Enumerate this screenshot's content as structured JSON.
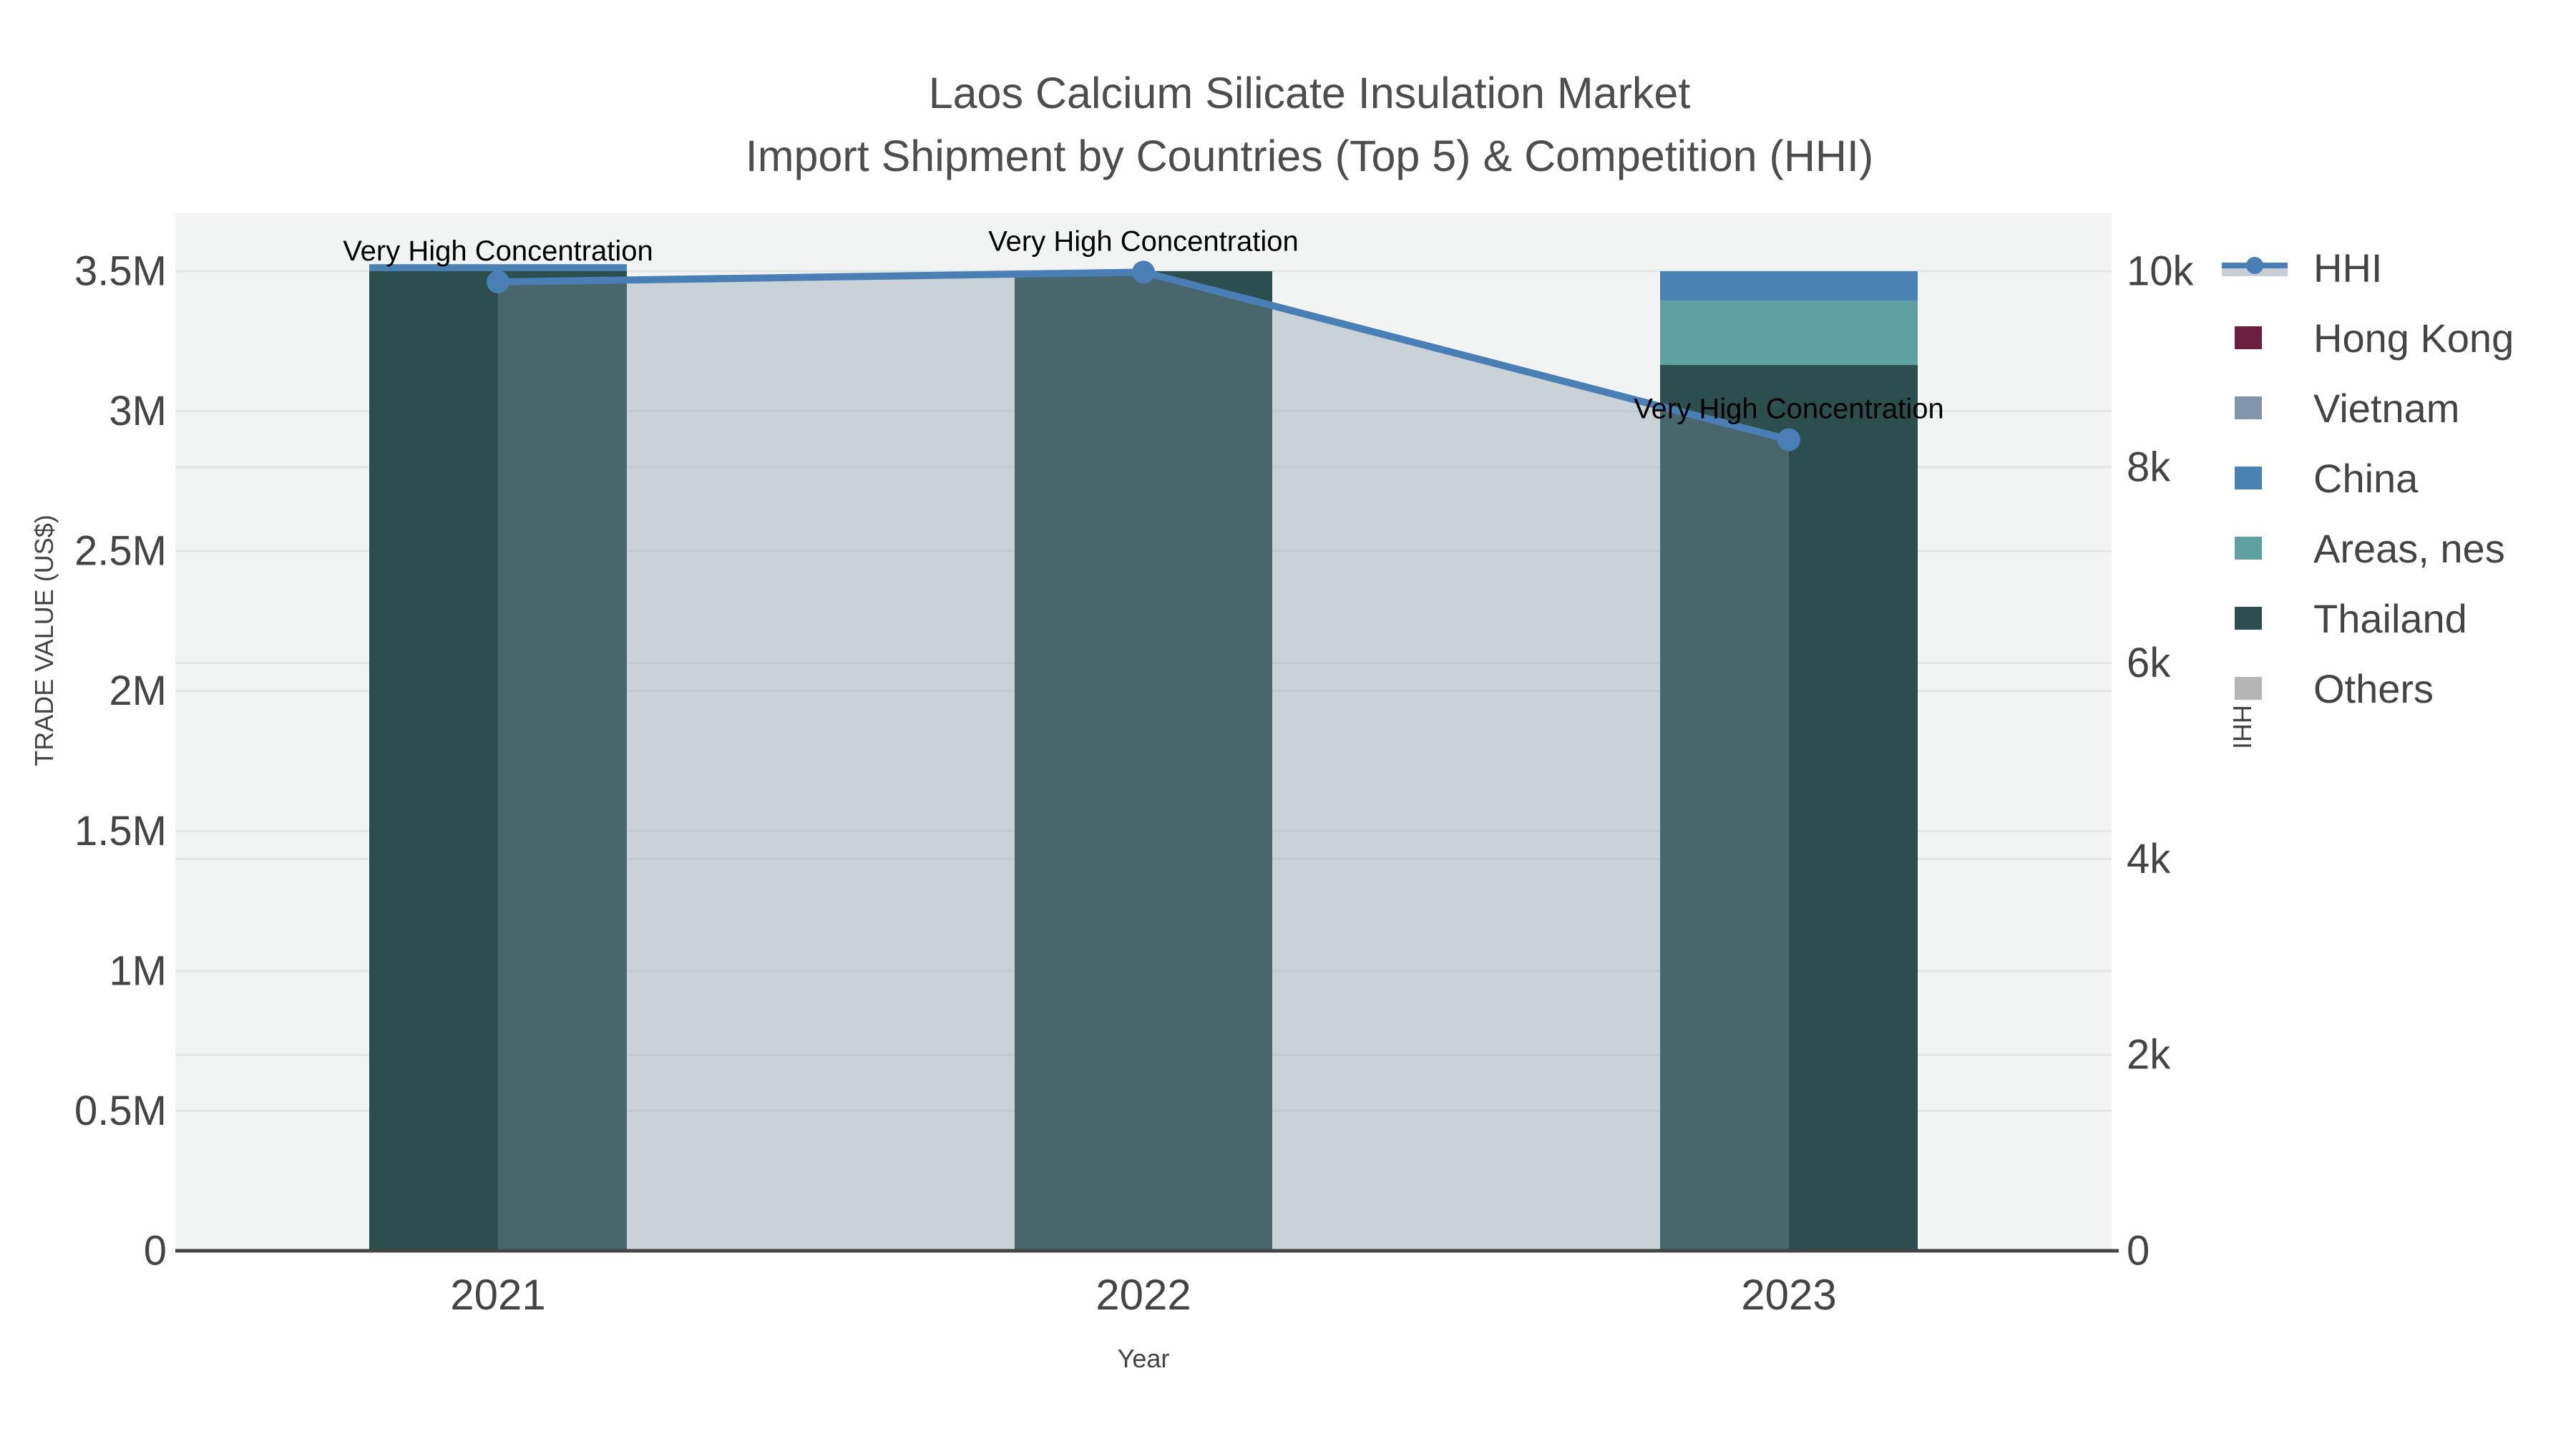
{
  "chart_data": {
    "type": "bar+line",
    "title_line1": "Laos Calcium Silicate Insulation Market",
    "title_line2": "Import Shipment by Countries (Top 5) & Competition (HHI)",
    "xlabel": "Year",
    "ylabel_left": "TRADE VALUE (US$)",
    "ylabel_right": "HHI",
    "categories": [
      "2021",
      "2022",
      "2023"
    ],
    "y_left_axis": {
      "tick_labels": [
        "0",
        "0.5M",
        "1M",
        "1.5M",
        "2M",
        "2.5M",
        "3M",
        "3.5M"
      ],
      "tick_values": [
        0,
        500000,
        1000000,
        1500000,
        2000000,
        2500000,
        3000000,
        3500000
      ],
      "range": [
        0,
        3710000
      ],
      "grid": true
    },
    "y_right_axis": {
      "tick_labels": [
        "0",
        "2k",
        "4k",
        "6k",
        "8k",
        "10k"
      ],
      "tick_values": [
        0,
        2000,
        4000,
        6000,
        8000,
        10000
      ],
      "range": [
        0,
        10600
      ],
      "grid": true
    },
    "bar_series": [
      {
        "name": "Hong Kong",
        "color": "#6b1f3e",
        "values": [
          0,
          0,
          0
        ]
      },
      {
        "name": "Vietnam",
        "color": "#8395a8",
        "values": [
          0,
          0,
          0
        ]
      },
      {
        "name": "China",
        "color": "#4a82b4",
        "values": [
          25000,
          0,
          105000
        ]
      },
      {
        "name": "Areas, nes",
        "color": "#5fa0a1",
        "values": [
          0,
          0,
          230000
        ]
      },
      {
        "name": "Thailand",
        "color": "#2d4e4f",
        "values": [
          3500000,
          3500000,
          3165000
        ]
      },
      {
        "name": "Others",
        "color": "#b5b5b5",
        "values": [
          0,
          0,
          0
        ]
      }
    ],
    "stack_order_bottom_to_top": [
      "Others",
      "Thailand",
      "Areas, nes",
      "China",
      "Vietnam",
      "Hong Kong"
    ],
    "bar_totals": [
      3525000,
      3500000,
      3500000
    ],
    "line_series": {
      "name": "HHI",
      "axis": "right",
      "color": "#4a7fb5",
      "fill_color": "rgba(125,148,163,0.35)",
      "fill_swatch": "#c9cdd7",
      "values": [
        9890,
        9990,
        8280
      ]
    },
    "annotations": [
      {
        "text": "Very High Concentration",
        "category": "2021",
        "hhi": 9890
      },
      {
        "text": "Very High Concentration",
        "category": "2022",
        "hhi": 9990
      },
      {
        "text": "Very High Concentration",
        "category": "2023",
        "hhi": 8280
      }
    ],
    "legend_entries": [
      "HHI",
      "Hong Kong",
      "Vietnam",
      "China",
      "Areas, nes",
      "Thailand",
      "Others"
    ],
    "legend_position": "right"
  },
  "colors": {
    "plot_background": "#f2f3f3",
    "grid_line": "#e4e6e6",
    "zero_line": "#444444",
    "tick_text": "#444444",
    "title_text": "#4d4d4d",
    "annotation_text": "#000000"
  }
}
